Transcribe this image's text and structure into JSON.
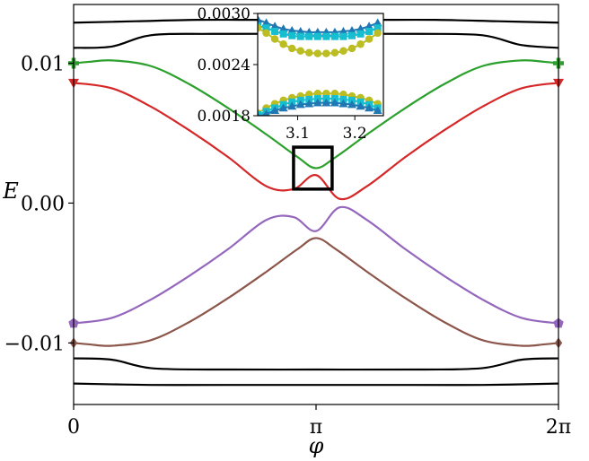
{
  "chart_data": [
    {
      "type": "line",
      "xlabel": "φ",
      "ylabel": "E",
      "xlim": [
        0,
        6.2832
      ],
      "ylim": [
        -0.0144,
        0.0142
      ],
      "xticks": [
        {
          "value": 0,
          "label": "0"
        },
        {
          "value": 3.1416,
          "label": "π"
        },
        {
          "value": 6.2832,
          "label": "2π"
        }
      ],
      "yticks": [
        {
          "value": -0.01,
          "label": "−0.01"
        },
        {
          "value": 0.0,
          "label": "0.00"
        },
        {
          "value": 0.01,
          "label": "0.01"
        }
      ],
      "grid": false,
      "legend": "none",
      "series": [
        {
          "color": "#000000",
          "x": [
            0,
            0.8,
            1.6,
            2.4,
            3.1416,
            3.9,
            4.7,
            5.5,
            6.2832
          ],
          "y": [
            0.0129,
            0.013,
            0.0131,
            0.0131,
            0.0131,
            0.0131,
            0.0131,
            0.013,
            0.0129
          ]
        },
        {
          "color": "#000000",
          "x": [
            0,
            0.5,
            1.0,
            1.8,
            3.1416,
            4.5,
            5.3,
            5.8,
            6.2832
          ],
          "y": [
            0.0111,
            0.0112,
            0.012,
            0.0121,
            0.0121,
            0.0121,
            0.012,
            0.0113,
            0.0111
          ]
        },
        {
          "color": "#2ca02c",
          "marker": "plus",
          "x": [
            0,
            0.2,
            0.5,
            1.0,
            1.5,
            2.0,
            2.5,
            2.9,
            3.1416,
            3.4,
            3.8,
            4.3,
            4.8,
            5.3,
            5.8,
            6.1,
            6.2832
          ],
          "y": [
            0.01,
            0.0101,
            0.0102,
            0.0098,
            0.0085,
            0.0068,
            0.0049,
            0.0033,
            0.0025,
            0.0033,
            0.0049,
            0.0068,
            0.0085,
            0.0098,
            0.0102,
            0.0101,
            0.01
          ]
        },
        {
          "color": "#d62728",
          "marker": "triangle-down",
          "x": [
            0,
            0.5,
            1.0,
            1.5,
            2.0,
            2.5,
            2.85,
            3.1416,
            3.45,
            3.8,
            4.3,
            4.8,
            5.3,
            5.8,
            6.2832
          ],
          "y": [
            0.0086,
            0.0082,
            0.0069,
            0.0052,
            0.0033,
            0.0012,
            0.001,
            0.002,
            0.0003,
            0.0012,
            0.0033,
            0.0052,
            0.0069,
            0.0082,
            0.0086
          ]
        },
        {
          "color": "#9467bd",
          "marker": "pentagon",
          "x": [
            0,
            0.5,
            1.0,
            1.5,
            2.0,
            2.5,
            2.85,
            3.1416,
            3.45,
            3.8,
            4.3,
            4.8,
            5.3,
            5.8,
            6.2832
          ],
          "y": [
            -0.0086,
            -0.0082,
            -0.0069,
            -0.0052,
            -0.0033,
            -0.0012,
            -0.001,
            -0.002,
            -0.0003,
            -0.0012,
            -0.0033,
            -0.0052,
            -0.0069,
            -0.0082,
            -0.0086
          ]
        },
        {
          "color": "#8c564b",
          "marker": "diamond",
          "x": [
            0,
            0.2,
            0.5,
            1.0,
            1.5,
            2.0,
            2.5,
            2.9,
            3.1416,
            3.4,
            3.8,
            4.3,
            4.8,
            5.3,
            5.8,
            6.1,
            6.2832
          ],
          "y": [
            -0.01,
            -0.0101,
            -0.0102,
            -0.0098,
            -0.0085,
            -0.0068,
            -0.0049,
            -0.0033,
            -0.0025,
            -0.0033,
            -0.0049,
            -0.0068,
            -0.0085,
            -0.0098,
            -0.0102,
            -0.0101,
            -0.01
          ]
        },
        {
          "color": "#000000",
          "x": [
            0,
            0.5,
            1.0,
            1.8,
            3.1416,
            4.5,
            5.3,
            5.8,
            6.2832
          ],
          "y": [
            -0.0111,
            -0.0112,
            -0.0118,
            -0.0119,
            -0.0119,
            -0.0119,
            -0.0118,
            -0.0112,
            -0.0111
          ]
        },
        {
          "color": "#000000",
          "x": [
            0,
            1.0,
            2.0,
            3.1416,
            4.3,
            5.3,
            6.2832
          ],
          "y": [
            -0.0129,
            -0.013,
            -0.013,
            -0.013,
            -0.013,
            -0.013,
            -0.0129
          ]
        }
      ],
      "annotation_box": {
        "x": [
          2.85,
          3.35
        ],
        "y": [
          0.001,
          0.004
        ]
      }
    },
    {
      "type": "line",
      "xlim": [
        3.03,
        3.25
      ],
      "ylim": [
        0.0018,
        0.003
      ],
      "xticks": [
        {
          "value": 3.1,
          "label": "3.1"
        },
        {
          "value": 3.2,
          "label": "3.2"
        }
      ],
      "yticks": [
        {
          "value": 0.0018,
          "label": "0.0018"
        },
        {
          "value": 0.0024,
          "label": "0.0024"
        },
        {
          "value": 0.003,
          "label": "0.0030"
        }
      ],
      "grid": false,
      "series": [
        {
          "color": "#1f77b4",
          "marker": "triangle",
          "x": [
            3.03,
            3.045,
            3.06,
            3.075,
            3.09,
            3.105,
            3.12,
            3.135,
            3.15,
            3.165,
            3.18,
            3.195,
            3.21,
            3.225,
            3.24
          ],
          "y": [
            0.00293,
            0.00289,
            0.00285,
            0.00282,
            0.0028,
            0.00279,
            0.00278,
            0.00278,
            0.00278,
            0.00278,
            0.00279,
            0.0028,
            0.00282,
            0.00285,
            0.00289
          ]
        },
        {
          "color": "#17becf",
          "marker": "square",
          "x": [
            3.03,
            3.045,
            3.06,
            3.075,
            3.09,
            3.105,
            3.12,
            3.135,
            3.15,
            3.165,
            3.18,
            3.195,
            3.21,
            3.225,
            3.24
          ],
          "y": [
            0.00285,
            0.00283,
            0.00279,
            0.00276,
            0.00274,
            0.00273,
            0.00273,
            0.00273,
            0.00273,
            0.00273,
            0.00273,
            0.00274,
            0.00276,
            0.00279,
            0.00283
          ]
        },
        {
          "color": "#bcbd22",
          "marker": "circle",
          "x": [
            3.03,
            3.045,
            3.06,
            3.075,
            3.09,
            3.105,
            3.12,
            3.135,
            3.15,
            3.165,
            3.18,
            3.195,
            3.21,
            3.225,
            3.24
          ],
          "y": [
            0.00283,
            0.00277,
            0.0027,
            0.00264,
            0.00259,
            0.00256,
            0.00254,
            0.00253,
            0.00253,
            0.00254,
            0.00256,
            0.00259,
            0.00264,
            0.0027,
            0.00277
          ]
        },
        {
          "color": "#bcbd22",
          "marker": "circle",
          "x": [
            3.03,
            3.045,
            3.06,
            3.075,
            3.09,
            3.105,
            3.12,
            3.135,
            3.15,
            3.165,
            3.18,
            3.195,
            3.21,
            3.225,
            3.24
          ],
          "y": [
            0.00183,
            0.00189,
            0.00194,
            0.00198,
            0.00201,
            0.00203,
            0.00205,
            0.00206,
            0.00206,
            0.00206,
            0.00205,
            0.00203,
            0.00201,
            0.00198,
            0.00194
          ]
        },
        {
          "color": "#17becf",
          "marker": "square",
          "x": [
            3.03,
            3.045,
            3.06,
            3.075,
            3.09,
            3.105,
            3.12,
            3.135,
            3.15,
            3.165,
            3.18,
            3.195,
            3.21,
            3.225,
            3.24
          ],
          "y": [
            0.00181,
            0.00185,
            0.00189,
            0.00193,
            0.00196,
            0.00198,
            0.00199,
            0.002,
            0.002,
            0.002,
            0.00199,
            0.00198,
            0.00196,
            0.00193,
            0.00189
          ]
        },
        {
          "color": "#1f77b4",
          "marker": "triangle",
          "x": [
            3.03,
            3.045,
            3.06,
            3.075,
            3.09,
            3.105,
            3.12,
            3.135,
            3.15,
            3.165,
            3.18,
            3.195,
            3.21,
            3.225,
            3.24
          ],
          "y": [
            0.00179,
            0.00182,
            0.00186,
            0.00189,
            0.00191,
            0.00193,
            0.00194,
            0.00195,
            0.00195,
            0.00195,
            0.00194,
            0.00193,
            0.00191,
            0.00189,
            0.00186
          ]
        }
      ]
    }
  ]
}
